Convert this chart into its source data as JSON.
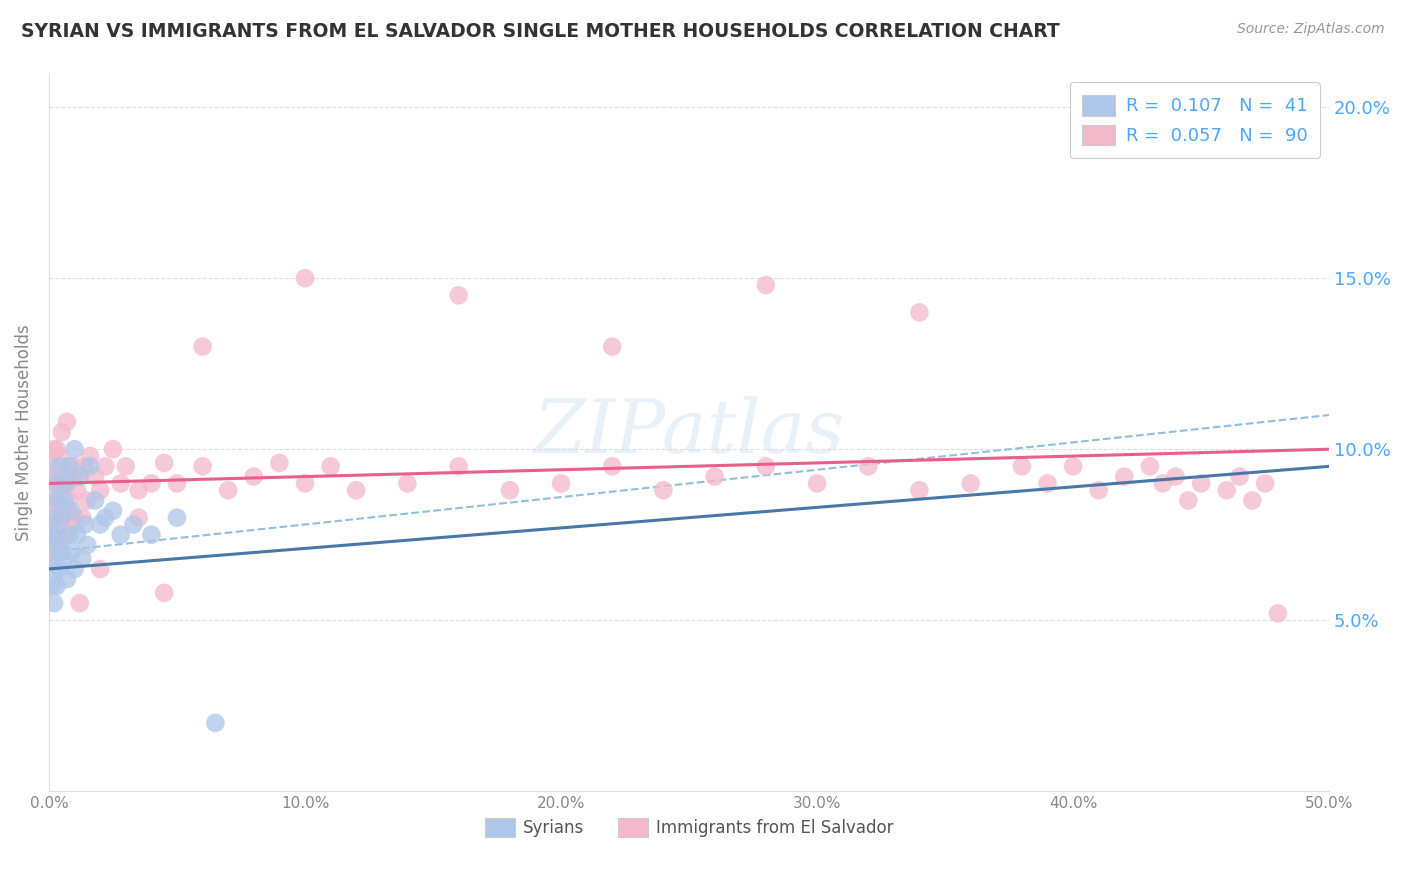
{
  "title": "SYRIAN VS IMMIGRANTS FROM EL SALVADOR SINGLE MOTHER HOUSEHOLDS CORRELATION CHART",
  "source": "Source: ZipAtlas.com",
  "ylabel": "Single Mother Households",
  "xlim": [
    0.0,
    0.5
  ],
  "ylim": [
    0.0,
    0.21
  ],
  "xticks": [
    0.0,
    0.1,
    0.2,
    0.3,
    0.4,
    0.5
  ],
  "xticklabels": [
    "0.0%",
    "10.0%",
    "20.0%",
    "30.0%",
    "40.0%",
    "50.0%"
  ],
  "yticks": [
    0.0,
    0.05,
    0.1,
    0.15,
    0.2
  ],
  "legend_R_syrian": "0.107",
  "legend_N_syrian": "41",
  "legend_R_salvador": "0.057",
  "legend_N_salvador": "90",
  "color_syrian": "#aec6e8",
  "color_salvador": "#f4b8cb",
  "line_color_syrian": "#4878a8",
  "line_color_salvador": "#e8608a",
  "dash_color": "#88b8d8",
  "watermark": "ZIPatlas",
  "syrian_x": [
    0.001,
    0.001,
    0.001,
    0.002,
    0.002,
    0.002,
    0.002,
    0.003,
    0.003,
    0.003,
    0.004,
    0.004,
    0.004,
    0.005,
    0.005,
    0.005,
    0.006,
    0.006,
    0.007,
    0.007,
    0.008,
    0.008,
    0.009,
    0.009,
    0.01,
    0.01,
    0.011,
    0.012,
    0.013,
    0.014,
    0.015,
    0.016,
    0.018,
    0.02,
    0.022,
    0.025,
    0.028,
    0.033,
    0.04,
    0.05,
    0.065
  ],
  "syrian_y": [
    0.06,
    0.07,
    0.075,
    0.055,
    0.065,
    0.08,
    0.09,
    0.06,
    0.075,
    0.085,
    0.065,
    0.072,
    0.095,
    0.07,
    0.08,
    0.09,
    0.068,
    0.085,
    0.062,
    0.09,
    0.075,
    0.095,
    0.07,
    0.082,
    0.065,
    0.1,
    0.075,
    0.092,
    0.068,
    0.078,
    0.072,
    0.095,
    0.085,
    0.078,
    0.08,
    0.082,
    0.075,
    0.078,
    0.075,
    0.08,
    0.02
  ],
  "salvador_x": [
    0.001,
    0.001,
    0.002,
    0.002,
    0.002,
    0.003,
    0.003,
    0.003,
    0.004,
    0.004,
    0.004,
    0.005,
    0.005,
    0.005,
    0.006,
    0.006,
    0.007,
    0.007,
    0.007,
    0.008,
    0.008,
    0.009,
    0.009,
    0.01,
    0.01,
    0.011,
    0.012,
    0.013,
    0.014,
    0.015,
    0.016,
    0.018,
    0.02,
    0.022,
    0.025,
    0.028,
    0.03,
    0.035,
    0.04,
    0.045,
    0.05,
    0.06,
    0.07,
    0.08,
    0.09,
    0.1,
    0.11,
    0.12,
    0.14,
    0.16,
    0.18,
    0.2,
    0.22,
    0.24,
    0.26,
    0.28,
    0.3,
    0.32,
    0.34,
    0.36,
    0.38,
    0.39,
    0.4,
    0.41,
    0.42,
    0.43,
    0.435,
    0.44,
    0.445,
    0.45,
    0.46,
    0.465,
    0.47,
    0.475,
    0.34,
    0.28,
    0.22,
    0.16,
    0.1,
    0.06,
    0.035,
    0.02,
    0.012,
    0.007,
    0.004,
    0.002,
    0.001,
    0.001,
    0.48,
    0.045
  ],
  "salvador_y": [
    0.085,
    0.095,
    0.08,
    0.092,
    0.1,
    0.075,
    0.09,
    0.1,
    0.07,
    0.085,
    0.098,
    0.08,
    0.092,
    0.105,
    0.075,
    0.09,
    0.082,
    0.092,
    0.108,
    0.085,
    0.095,
    0.078,
    0.092,
    0.08,
    0.095,
    0.088,
    0.092,
    0.08,
    0.095,
    0.085,
    0.098,
    0.092,
    0.088,
    0.095,
    0.1,
    0.09,
    0.095,
    0.088,
    0.09,
    0.096,
    0.09,
    0.095,
    0.088,
    0.092,
    0.096,
    0.09,
    0.095,
    0.088,
    0.09,
    0.095,
    0.088,
    0.09,
    0.095,
    0.088,
    0.092,
    0.095,
    0.09,
    0.095,
    0.088,
    0.09,
    0.095,
    0.09,
    0.095,
    0.088,
    0.092,
    0.095,
    0.09,
    0.092,
    0.085,
    0.09,
    0.088,
    0.092,
    0.085,
    0.09,
    0.14,
    0.148,
    0.13,
    0.145,
    0.15,
    0.13,
    0.08,
    0.065,
    0.055,
    0.075,
    0.085,
    0.078,
    0.072,
    0.068,
    0.052,
    0.058
  ],
  "background_color": "#ffffff",
  "grid_color": "#dddddd",
  "title_color": "#333333",
  "axis_color": "#888888",
  "right_ytick_color": "#4da6ff"
}
